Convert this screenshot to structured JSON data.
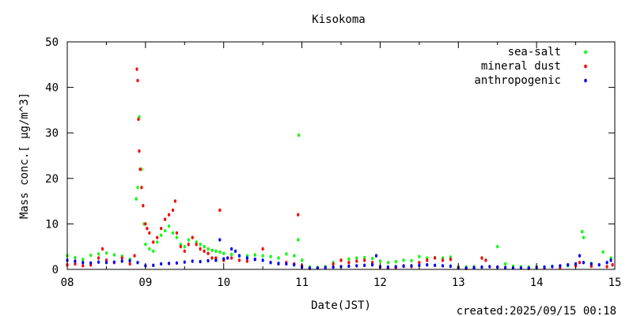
{
  "chart_data": {
    "type": "scatter",
    "title": "Kisokoma",
    "xlabel": "Date(JST)",
    "ylabel": "Mass conc.[ μg/m^3]",
    "xlim": [
      8,
      15
    ],
    "ylim": [
      0,
      50
    ],
    "x_ticks": [
      "08",
      "09",
      "10",
      "11",
      "12",
      "13",
      "14",
      "15"
    ],
    "y_ticks": [
      "0",
      "10",
      "20",
      "30",
      "40",
      "50"
    ],
    "grid": false,
    "legend_position": "top-right",
    "series": [
      {
        "name": "sea-salt",
        "color": "#00ff00",
        "points": [
          [
            8.0,
            3.0
          ],
          [
            8.1,
            2.6
          ],
          [
            8.2,
            2.2
          ],
          [
            8.3,
            3.1
          ],
          [
            8.4,
            3.4
          ],
          [
            8.5,
            3.6
          ],
          [
            8.6,
            3.2
          ],
          [
            8.7,
            2.9
          ],
          [
            8.8,
            2.2
          ],
          [
            8.88,
            15.5
          ],
          [
            8.9,
            18.0
          ],
          [
            8.92,
            33.5
          ],
          [
            8.95,
            22.0
          ],
          [
            8.98,
            10.0
          ],
          [
            9.0,
            5.5
          ],
          [
            9.05,
            4.5
          ],
          [
            9.1,
            4.0
          ],
          [
            9.15,
            6.0
          ],
          [
            9.2,
            7.5
          ],
          [
            9.25,
            8.5
          ],
          [
            9.3,
            9.5
          ],
          [
            9.35,
            8.0
          ],
          [
            9.4,
            7.0
          ],
          [
            9.45,
            5.5
          ],
          [
            9.5,
            5.0
          ],
          [
            9.55,
            6.5
          ],
          [
            9.6,
            7.0
          ],
          [
            9.65,
            6.0
          ],
          [
            9.7,
            5.5
          ],
          [
            9.75,
            5.0
          ],
          [
            9.8,
            4.5
          ],
          [
            9.85,
            4.2
          ],
          [
            9.9,
            4.0
          ],
          [
            9.95,
            3.8
          ],
          [
            10.0,
            3.5
          ],
          [
            10.1,
            3.3
          ],
          [
            10.2,
            3.0
          ],
          [
            10.3,
            3.0
          ],
          [
            10.4,
            3.2
          ],
          [
            10.5,
            3.0
          ],
          [
            10.6,
            2.8
          ],
          [
            10.7,
            2.5
          ],
          [
            10.8,
            3.4
          ],
          [
            10.9,
            3.0
          ],
          [
            10.95,
            6.5
          ],
          [
            10.96,
            29.5
          ],
          [
            11.0,
            2.0
          ],
          [
            11.1,
            0.5
          ],
          [
            11.2,
            0.4
          ],
          [
            11.3,
            0.6
          ],
          [
            11.4,
            1.5
          ],
          [
            11.5,
            2.0
          ],
          [
            11.6,
            2.3
          ],
          [
            11.7,
            2.5
          ],
          [
            11.8,
            2.6
          ],
          [
            11.9,
            2.4
          ],
          [
            12.0,
            1.8
          ],
          [
            12.1,
            1.5
          ],
          [
            12.2,
            1.7
          ],
          [
            12.3,
            2.0
          ],
          [
            12.4,
            1.9
          ],
          [
            12.5,
            2.8
          ],
          [
            12.6,
            2.5
          ],
          [
            12.7,
            2.6
          ],
          [
            12.8,
            2.5
          ],
          [
            12.9,
            2.7
          ],
          [
            13.0,
            0.6
          ],
          [
            13.1,
            0.5
          ],
          [
            13.2,
            0.6
          ],
          [
            13.3,
            2.5
          ],
          [
            13.5,
            5.0
          ],
          [
            13.6,
            1.2
          ],
          [
            13.7,
            0.7
          ],
          [
            13.8,
            0.6
          ],
          [
            13.9,
            0.5
          ],
          [
            14.0,
            0.6
          ],
          [
            14.2,
            0.7
          ],
          [
            14.4,
            0.8
          ],
          [
            14.5,
            1.2
          ],
          [
            14.58,
            8.3
          ],
          [
            14.6,
            7.0
          ],
          [
            14.7,
            1.3
          ],
          [
            14.85,
            3.8
          ],
          [
            14.95,
            2.5
          ]
        ]
      },
      {
        "name": "mineral dust",
        "color": "#ff0000",
        "points": [
          [
            8.0,
            1.0
          ],
          [
            8.1,
            1.2
          ],
          [
            8.2,
            0.8
          ],
          [
            8.3,
            1.0
          ],
          [
            8.4,
            2.5
          ],
          [
            8.45,
            4.5
          ],
          [
            8.5,
            2.0
          ],
          [
            8.6,
            1.5
          ],
          [
            8.7,
            2.5
          ],
          [
            8.8,
            1.2
          ],
          [
            8.86,
            3.0
          ],
          [
            8.89,
            44.0
          ],
          [
            8.9,
            41.5
          ],
          [
            8.91,
            33.0
          ],
          [
            8.92,
            26.0
          ],
          [
            8.93,
            22.0
          ],
          [
            8.95,
            18.0
          ],
          [
            8.97,
            14.0
          ],
          [
            9.0,
            10.0
          ],
          [
            9.02,
            9.0
          ],
          [
            9.05,
            8.0
          ],
          [
            9.1,
            6.0
          ],
          [
            9.15,
            7.0
          ],
          [
            9.2,
            9.0
          ],
          [
            9.25,
            11.0
          ],
          [
            9.3,
            12.0
          ],
          [
            9.35,
            13.0
          ],
          [
            9.38,
            15.0
          ],
          [
            9.4,
            8.0
          ],
          [
            9.45,
            5.0
          ],
          [
            9.5,
            4.0
          ],
          [
            9.55,
            5.5
          ],
          [
            9.6,
            7.0
          ],
          [
            9.65,
            5.5
          ],
          [
            9.7,
            4.5
          ],
          [
            9.75,
            4.0
          ],
          [
            9.8,
            3.5
          ],
          [
            9.85,
            2.5
          ],
          [
            9.9,
            2.5
          ],
          [
            9.95,
            13.0
          ],
          [
            10.0,
            2.0
          ],
          [
            10.1,
            2.5
          ],
          [
            10.2,
            2.0
          ],
          [
            10.3,
            1.8
          ],
          [
            10.4,
            2.2
          ],
          [
            10.5,
            4.5
          ],
          [
            10.6,
            1.5
          ],
          [
            10.7,
            1.2
          ],
          [
            10.8,
            1.5
          ],
          [
            10.9,
            1.2
          ],
          [
            10.95,
            12.0
          ],
          [
            11.0,
            0.8
          ],
          [
            11.1,
            0.2
          ],
          [
            11.2,
            0.3
          ],
          [
            11.3,
            0.4
          ],
          [
            11.4,
            1.2
          ],
          [
            11.5,
            2.0
          ],
          [
            11.6,
            1.5
          ],
          [
            11.7,
            1.8
          ],
          [
            11.8,
            2.0
          ],
          [
            11.9,
            1.5
          ],
          [
            12.0,
            0.5
          ],
          [
            12.1,
            0.3
          ],
          [
            12.2,
            0.4
          ],
          [
            12.3,
            0.8
          ],
          [
            12.4,
            0.6
          ],
          [
            12.5,
            1.5
          ],
          [
            12.6,
            2.0
          ],
          [
            12.7,
            2.5
          ],
          [
            12.8,
            2.0
          ],
          [
            12.9,
            2.2
          ],
          [
            13.0,
            0.4
          ],
          [
            13.1,
            0.2
          ],
          [
            13.2,
            0.3
          ],
          [
            13.3,
            2.5
          ],
          [
            13.35,
            2.0
          ],
          [
            13.5,
            0.5
          ],
          [
            13.7,
            0.3
          ],
          [
            13.9,
            0.2
          ],
          [
            14.1,
            0.3
          ],
          [
            14.3,
            0.4
          ],
          [
            14.5,
            0.8
          ],
          [
            14.55,
            1.5
          ],
          [
            14.7,
            0.7
          ],
          [
            14.9,
            0.6
          ],
          [
            14.97,
            1.0
          ]
        ]
      },
      {
        "name": "anthropogenic",
        "color": "#0000ff",
        "points": [
          [
            8.0,
            2.0
          ],
          [
            8.1,
            1.8
          ],
          [
            8.2,
            1.5
          ],
          [
            8.3,
            1.4
          ],
          [
            8.4,
            1.6
          ],
          [
            8.5,
            1.5
          ],
          [
            8.6,
            1.6
          ],
          [
            8.7,
            1.8
          ],
          [
            8.8,
            1.9
          ],
          [
            8.9,
            1.5
          ],
          [
            9.0,
            0.8
          ],
          [
            9.1,
            0.9
          ],
          [
            9.2,
            1.2
          ],
          [
            9.3,
            1.3
          ],
          [
            9.4,
            1.4
          ],
          [
            9.5,
            1.6
          ],
          [
            9.6,
            1.8
          ],
          [
            9.7,
            1.7
          ],
          [
            9.8,
            1.9
          ],
          [
            9.9,
            2.0
          ],
          [
            9.95,
            6.5
          ],
          [
            10.0,
            2.3
          ],
          [
            10.05,
            2.5
          ],
          [
            10.1,
            4.5
          ],
          [
            10.15,
            4.0
          ],
          [
            10.2,
            3.0
          ],
          [
            10.3,
            2.5
          ],
          [
            10.4,
            2.2
          ],
          [
            10.5,
            2.0
          ],
          [
            10.6,
            1.5
          ],
          [
            10.7,
            1.3
          ],
          [
            10.8,
            1.2
          ],
          [
            10.9,
            1.0
          ],
          [
            11.0,
            0.5
          ],
          [
            11.1,
            0.3
          ],
          [
            11.2,
            0.3
          ],
          [
            11.3,
            0.4
          ],
          [
            11.4,
            0.5
          ],
          [
            11.5,
            0.6
          ],
          [
            11.6,
            0.7
          ],
          [
            11.7,
            0.8
          ],
          [
            11.8,
            0.9
          ],
          [
            11.9,
            1.0
          ],
          [
            11.95,
            3.0
          ],
          [
            12.0,
            0.6
          ],
          [
            12.1,
            0.5
          ],
          [
            12.2,
            0.6
          ],
          [
            12.3,
            0.7
          ],
          [
            12.4,
            0.8
          ],
          [
            12.5,
            0.9
          ],
          [
            12.6,
            1.0
          ],
          [
            12.7,
            0.9
          ],
          [
            12.8,
            0.8
          ],
          [
            12.9,
            0.7
          ],
          [
            13.0,
            0.3
          ],
          [
            13.1,
            0.3
          ],
          [
            13.2,
            0.4
          ],
          [
            13.3,
            0.5
          ],
          [
            13.4,
            0.6
          ],
          [
            13.5,
            0.5
          ],
          [
            13.6,
            0.4
          ],
          [
            13.7,
            0.3
          ],
          [
            13.8,
            0.3
          ],
          [
            13.9,
            0.3
          ],
          [
            14.0,
            0.4
          ],
          [
            14.1,
            0.5
          ],
          [
            14.2,
            0.6
          ],
          [
            14.3,
            0.8
          ],
          [
            14.4,
            1.0
          ],
          [
            14.5,
            1.2
          ],
          [
            14.55,
            3.0
          ],
          [
            14.6,
            1.5
          ],
          [
            14.7,
            1.2
          ],
          [
            14.8,
            1.0
          ],
          [
            14.9,
            1.5
          ],
          [
            14.95,
            2.0
          ]
        ]
      }
    ]
  },
  "footer": {
    "created": "created:2025/09/15 00:18"
  }
}
